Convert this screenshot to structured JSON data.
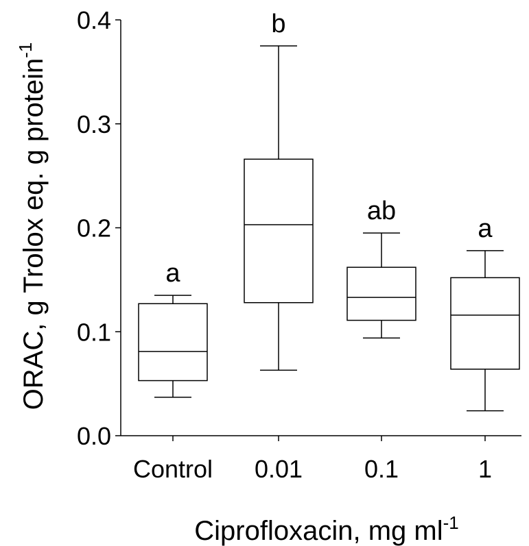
{
  "chart_data": {
    "type": "box",
    "xlabel": "Ciprofloxacin, mg ml",
    "xlabel_superscript": "-1",
    "ylabel": "ORAC, g Trolox eq. g protein",
    "ylabel_superscript": "-1",
    "ylim": [
      0.0,
      0.4
    ],
    "yticks": [
      "0.0",
      "0.1",
      "0.2",
      "0.3",
      "0.4"
    ],
    "categories": [
      "Control",
      "0.01",
      "0.1",
      "1"
    ],
    "boxes": [
      {
        "category": "Control",
        "min": 0.037,
        "q1": 0.053,
        "median": 0.081,
        "q3": 0.127,
        "max": 0.135,
        "label": "a"
      },
      {
        "category": "0.01",
        "min": 0.063,
        "q1": 0.128,
        "median": 0.203,
        "q3": 0.266,
        "max": 0.375,
        "label": "b"
      },
      {
        "category": "0.1",
        "min": 0.094,
        "q1": 0.111,
        "median": 0.133,
        "q3": 0.162,
        "max": 0.195,
        "label": "ab"
      },
      {
        "category": "1",
        "min": 0.024,
        "q1": 0.064,
        "median": 0.116,
        "q3": 0.152,
        "max": 0.178,
        "label": "a"
      }
    ],
    "grid": false
  }
}
